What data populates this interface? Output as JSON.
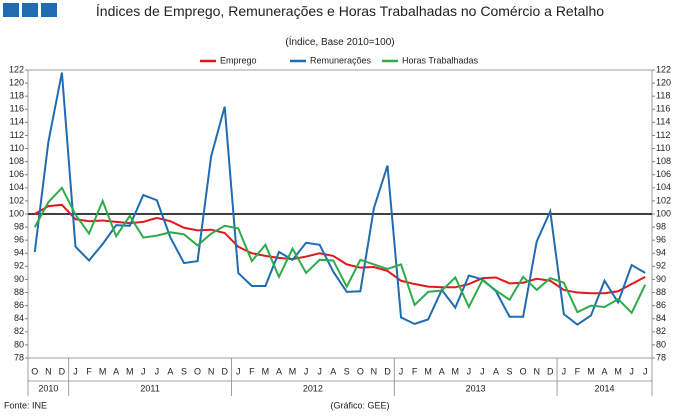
{
  "chart_data": {
    "type": "line",
    "title": "Índices de Emprego, Remunerações e Horas Trabalhadas no Comércio a Retalho",
    "subtitle": "(Índice, Base 2010=100)",
    "categories": [
      "O",
      "N",
      "D",
      "J",
      "F",
      "M",
      "A",
      "M",
      "J",
      "J",
      "A",
      "S",
      "O",
      "N",
      "D",
      "J",
      "F",
      "M",
      "A",
      "M",
      "J",
      "J",
      "A",
      "S",
      "O",
      "N",
      "D",
      "J",
      "F",
      "M",
      "A",
      "M",
      "J",
      "J",
      "A",
      "S",
      "O",
      "N",
      "D",
      "J",
      "F",
      "M",
      "A",
      "M",
      "J",
      "J"
    ],
    "year_groups": [
      {
        "label": "2010",
        "start": 0,
        "end": 2
      },
      {
        "label": "2011",
        "start": 3,
        "end": 14
      },
      {
        "label": "2012",
        "start": 15,
        "end": 26
      },
      {
        "label": "2013",
        "start": 27,
        "end": 38
      },
      {
        "label": "2014",
        "start": 39,
        "end": 45
      }
    ],
    "series": [
      {
        "name": "Emprego",
        "color": "#e3181d",
        "values": [
          100,
          101.2,
          101.4,
          99.2,
          98.9,
          99,
          98.8,
          98.6,
          98.8,
          99.4,
          98.9,
          97.9,
          97.5,
          97.6,
          97.1,
          95,
          94,
          93.6,
          93.3,
          93.1,
          93.5,
          94,
          93.6,
          92.3,
          91.8,
          91.9,
          91.3,
          89.8,
          89.3,
          88.9,
          88.8,
          88.8,
          89.3,
          90.2,
          90.3,
          89.4,
          89.5,
          90.1,
          89.8,
          88.4,
          88,
          87.9,
          87.9,
          88.2,
          89.3,
          90.4
        ]
      },
      {
        "name": "Remunerações",
        "color": "#1f6cb0",
        "values": [
          94.2,
          111,
          121.6,
          95,
          92.9,
          95.4,
          98.3,
          98.2,
          102.9,
          102.1,
          96.4,
          92.5,
          92.8,
          108.8,
          116.4,
          91,
          89,
          89,
          94.2,
          93,
          95.6,
          95.3,
          91.2,
          88.1,
          88.2,
          100.9,
          107.4,
          84.2,
          83.2,
          83.9,
          88.4,
          85.7,
          90.6,
          90,
          88.2,
          84.3,
          84.3,
          95.8,
          100.4,
          84.7,
          83.1,
          84.5,
          89.8,
          86.5,
          92.2,
          91
        ]
      },
      {
        "name": "Horas Trabalhadas",
        "color": "#2eaa4a",
        "values": [
          98,
          101.8,
          104,
          99.9,
          97,
          102,
          96.6,
          99.7,
          96.4,
          96.7,
          97.2,
          96.9,
          95.2,
          97,
          98.2,
          97.8,
          92.8,
          95.3,
          90.4,
          94.7,
          91,
          93,
          92.9,
          88.9,
          93,
          92.3,
          91.6,
          92.3,
          86.1,
          88.1,
          88.3,
          90.3,
          85.8,
          89.9,
          88.3,
          86.9,
          90.4,
          88.4,
          90.2,
          89.5,
          85,
          86,
          85.8,
          87,
          84.9,
          89.2
        ]
      }
    ],
    "reference_line": 100,
    "ylim": [
      78,
      122
    ],
    "yticks": [
      78,
      80,
      82,
      84,
      86,
      88,
      90,
      92,
      94,
      96,
      98,
      100,
      102,
      104,
      106,
      108,
      110,
      112,
      114,
      116,
      118,
      120,
      122
    ],
    "source": "Fonte: INE",
    "credit": "(Gráfico: GEE)"
  }
}
